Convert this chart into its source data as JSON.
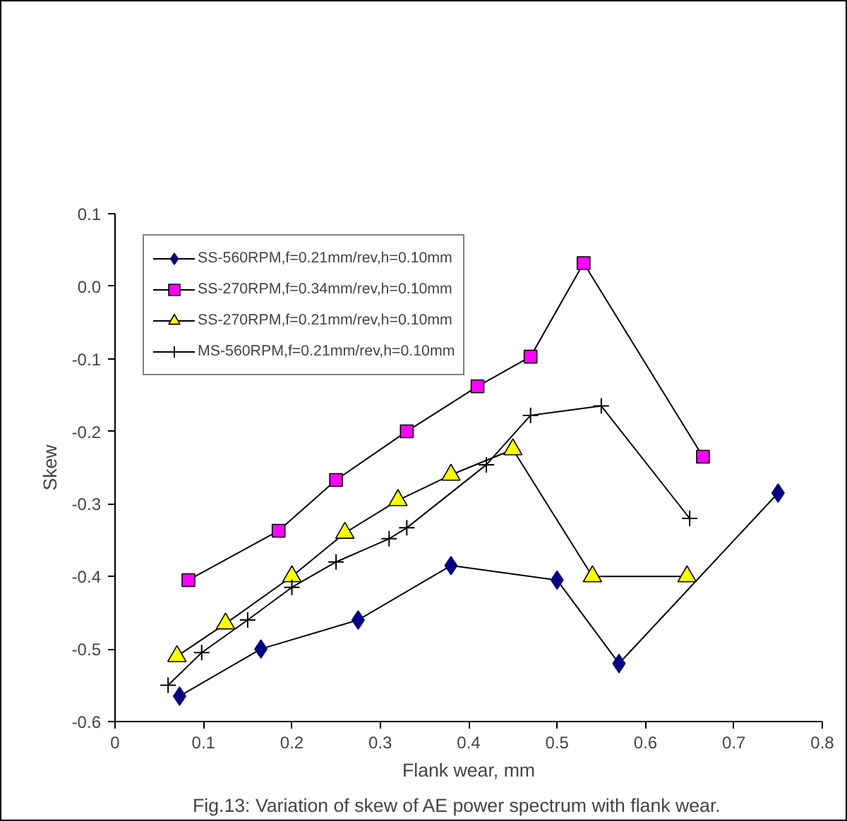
{
  "chart_data": {
    "type": "line",
    "xlabel": "Flank wear, mm",
    "ylabel": "Skew",
    "annotations": [
      "Fig.13:      Variation of skew of AE power spectrum with flank wear."
    ],
    "xlim": [
      0,
      0.8
    ],
    "xticks": [
      0,
      0.1,
      0.2,
      0.3,
      0.4,
      0.5,
      0.6,
      0.7,
      0.8
    ],
    "ylim": [
      -0.6,
      0.1
    ],
    "yticks": [
      0.1,
      {
        "value": 0,
        "label": "0.0"
      },
      -0.1,
      -0.2,
      -0.3,
      -0.4,
      -0.5,
      -0.6
    ],
    "grid": false,
    "legend": "top left",
    "series": [
      {
        "name": "SS-560RPM,f=0.21mm/rev,h=0.10mm",
        "color": "#000080",
        "marker": "diamond",
        "x": [
          0.073,
          0.165,
          0.275,
          0.38,
          0.5,
          0.57,
          0.75
        ],
        "values": [
          -0.565,
          -0.5,
          -0.46,
          -0.385,
          -0.405,
          -0.52,
          -0.285
        ]
      },
      {
        "name": "SS-270RPM,f=0.34mm/rev,h=0.10mm",
        "color": "#ff00ff",
        "marker": "square",
        "x": [
          0.083,
          0.185,
          0.25,
          0.33,
          0.41,
          0.47,
          0.53,
          0.665
        ],
        "values": [
          -0.405,
          -0.337,
          -0.267,
          -0.2,
          -0.138,
          -0.097,
          0.032,
          -0.235
        ]
      },
      {
        "name": "SS-270RPM,f=0.21mm/rev,h=0.10mm",
        "color": "#ffff00",
        "marker": "triangle",
        "x": [
          0.07,
          0.125,
          0.2,
          0.26,
          0.32,
          0.38,
          0.45,
          0.54,
          0.647
        ],
        "values": [
          -0.51,
          -0.465,
          -0.4,
          -0.34,
          -0.295,
          -0.26,
          -0.225,
          -0.4,
          -0.4
        ]
      },
      {
        "name": "MS-560RPM,f=0.21mm/rev,h=0.10mm",
        "color": "#000000",
        "marker": "cross",
        "x": [
          0.06,
          0.098,
          0.15,
          0.2,
          0.25,
          0.31,
          0.33,
          0.42,
          0.47,
          0.55,
          0.65
        ],
        "values": [
          -0.55,
          -0.505,
          -0.46,
          -0.415,
          -0.38,
          -0.348,
          -0.333,
          -0.246,
          -0.178,
          -0.165,
          -0.32
        ]
      }
    ]
  }
}
